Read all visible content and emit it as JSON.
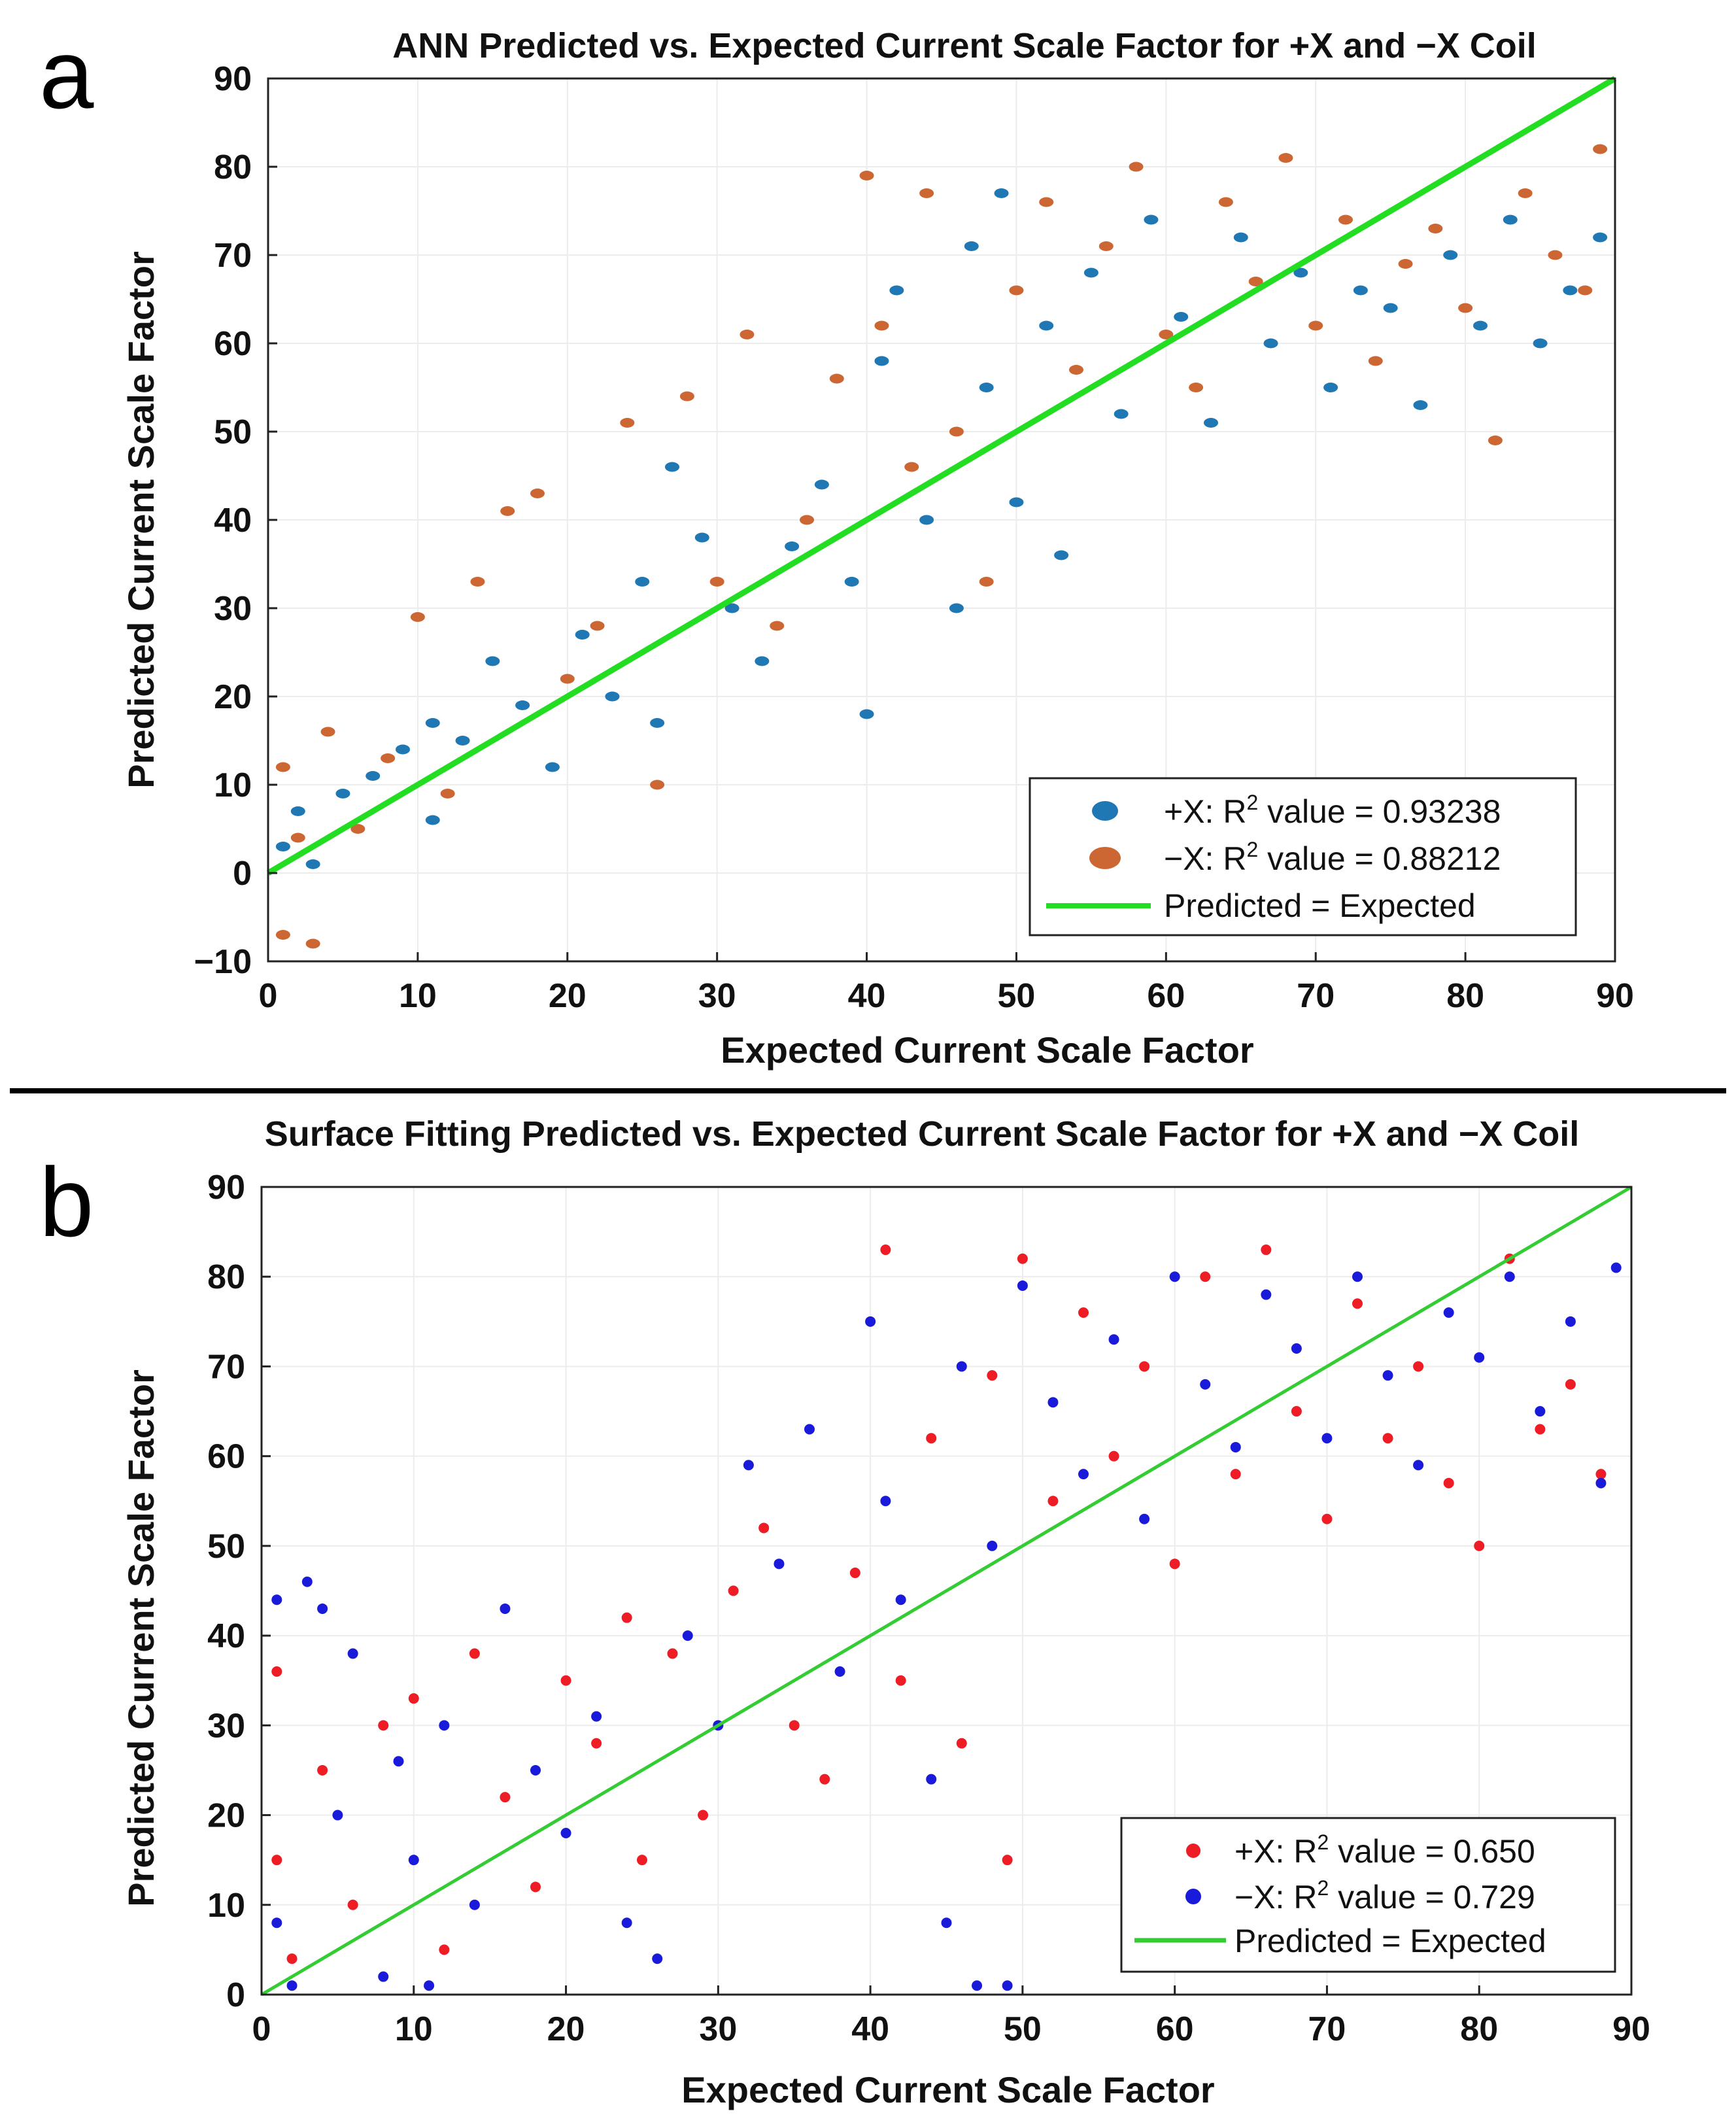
{
  "chart_data": [
    {
      "type": "scatter",
      "panel_letter": "a",
      "title": "ANN Predicted vs. Expected Current Scale Factor for +X and −X Coil",
      "xlabel": "Expected Current Scale Factor",
      "ylabel": "Predicted Current Scale Factor",
      "xlim": [
        0,
        90
      ],
      "ylim": [
        -10,
        90
      ],
      "xticks": [
        "0",
        "10",
        "20",
        "30",
        "40",
        "50",
        "60",
        "70",
        "80",
        "90"
      ],
      "yticks": [
        "−10",
        "0",
        "10",
        "20",
        "30",
        "40",
        "50",
        "60",
        "70",
        "80",
        "90"
      ],
      "legend_position": "bottom-right",
      "series": [
        {
          "name": "+X",
          "legend_label": "+X: R",
          "legend_sup": "2",
          "legend_value": " value  = 0.93238",
          "r_squared": 0.93238,
          "color": "#1f77b4",
          "marker": "ellipse",
          "points": [
            [
              1,
              3
            ],
            [
              2,
              7
            ],
            [
              3,
              1
            ],
            [
              5,
              9
            ],
            [
              7,
              11
            ],
            [
              9,
              14
            ],
            [
              11,
              17
            ],
            [
              11,
              6
            ],
            [
              13,
              15
            ],
            [
              15,
              24
            ],
            [
              17,
              19
            ],
            [
              19,
              12
            ],
            [
              21,
              27
            ],
            [
              23,
              20
            ],
            [
              25,
              33
            ],
            [
              26,
              17
            ],
            [
              27,
              46
            ],
            [
              29,
              38
            ],
            [
              31,
              30
            ],
            [
              33,
              24
            ],
            [
              35,
              37
            ],
            [
              37,
              44
            ],
            [
              39,
              33
            ],
            [
              40,
              18
            ],
            [
              41,
              58
            ],
            [
              42,
              66
            ],
            [
              44,
              40
            ],
            [
              46,
              30
            ],
            [
              47,
              71
            ],
            [
              48,
              55
            ],
            [
              49,
              77
            ],
            [
              50,
              42
            ],
            [
              52,
              62
            ],
            [
              53,
              36
            ],
            [
              55,
              68
            ],
            [
              57,
              52
            ],
            [
              59,
              74
            ],
            [
              61,
              63
            ],
            [
              63,
              51
            ],
            [
              65,
              72
            ],
            [
              67,
              60
            ],
            [
              69,
              68
            ],
            [
              71,
              55
            ],
            [
              73,
              66
            ],
            [
              75,
              64
            ],
            [
              77,
              53
            ],
            [
              79,
              70
            ],
            [
              81,
              62
            ],
            [
              83,
              74
            ],
            [
              85,
              60
            ],
            [
              87,
              66
            ],
            [
              89,
              72
            ]
          ]
        },
        {
          "name": "−X",
          "legend_label": "−X: R",
          "legend_sup": "2",
          "legend_value": " value  = 0.88212",
          "r_squared": 0.88212,
          "color": "#cc6633",
          "marker": "ellipse",
          "points": [
            [
              1,
              -7
            ],
            [
              1,
              12
            ],
            [
              2,
              4
            ],
            [
              3,
              -8
            ],
            [
              4,
              16
            ],
            [
              6,
              5
            ],
            [
              8,
              13
            ],
            [
              10,
              29
            ],
            [
              12,
              9
            ],
            [
              14,
              33
            ],
            [
              16,
              41
            ],
            [
              18,
              43
            ],
            [
              20,
              22
            ],
            [
              22,
              28
            ],
            [
              24,
              51
            ],
            [
              26,
              10
            ],
            [
              28,
              54
            ],
            [
              30,
              33
            ],
            [
              32,
              61
            ],
            [
              34,
              28
            ],
            [
              36,
              40
            ],
            [
              38,
              56
            ],
            [
              40,
              79
            ],
            [
              41,
              62
            ],
            [
              43,
              46
            ],
            [
              44,
              77
            ],
            [
              46,
              50
            ],
            [
              48,
              33
            ],
            [
              50,
              66
            ],
            [
              52,
              76
            ],
            [
              54,
              57
            ],
            [
              56,
              71
            ],
            [
              58,
              80
            ],
            [
              60,
              61
            ],
            [
              62,
              55
            ],
            [
              64,
              76
            ],
            [
              66,
              67
            ],
            [
              68,
              81
            ],
            [
              70,
              62
            ],
            [
              72,
              74
            ],
            [
              74,
              58
            ],
            [
              76,
              69
            ],
            [
              78,
              73
            ],
            [
              80,
              64
            ],
            [
              82,
              49
            ],
            [
              84,
              77
            ],
            [
              86,
              70
            ],
            [
              88,
              66
            ],
            [
              89,
              82
            ]
          ]
        },
        {
          "name": "Predicted = Expected",
          "legend_label": "Predicted  = Expected",
          "color": "#22dd22",
          "marker": "line",
          "x": [
            0,
            90
          ],
          "y": [
            0,
            90
          ]
        }
      ]
    },
    {
      "type": "scatter",
      "panel_letter": "b",
      "title": "Surface Fitting Predicted vs. Expected Current Scale Factor for +X and −X Coil",
      "xlabel": "Expected Current Scale Factor",
      "ylabel": "Predicted Current Scale Factor",
      "xlim": [
        0,
        90
      ],
      "ylim": [
        0,
        90
      ],
      "xticks": [
        "0",
        "10",
        "20",
        "30",
        "40",
        "50",
        "60",
        "70",
        "80",
        "90"
      ],
      "yticks": [
        "0",
        "10",
        "20",
        "30",
        "40",
        "50",
        "60",
        "70",
        "80",
        "90"
      ],
      "legend_position": "bottom-right",
      "series": [
        {
          "name": "+X",
          "legend_label": "+X: R",
          "legend_sup": "2",
          "legend_value": " value  = 0.650",
          "r_squared": 0.65,
          "color": "#ee1c24",
          "marker": "circle",
          "points": [
            [
              1,
              36
            ],
            [
              1,
              15
            ],
            [
              2,
              4
            ],
            [
              4,
              25
            ],
            [
              6,
              10
            ],
            [
              8,
              30
            ],
            [
              10,
              33
            ],
            [
              12,
              5
            ],
            [
              14,
              38
            ],
            [
              16,
              22
            ],
            [
              18,
              12
            ],
            [
              20,
              35
            ],
            [
              22,
              28
            ],
            [
              24,
              42
            ],
            [
              25,
              15
            ],
            [
              27,
              38
            ],
            [
              29,
              20
            ],
            [
              31,
              45
            ],
            [
              33,
              52
            ],
            [
              35,
              30
            ],
            [
              37,
              24
            ],
            [
              39,
              47
            ],
            [
              41,
              83
            ],
            [
              42,
              35
            ],
            [
              44,
              62
            ],
            [
              46,
              28
            ],
            [
              48,
              69
            ],
            [
              49,
              15
            ],
            [
              50,
              82
            ],
            [
              52,
              55
            ],
            [
              54,
              76
            ],
            [
              56,
              60
            ],
            [
              58,
              70
            ],
            [
              60,
              48
            ],
            [
              62,
              80
            ],
            [
              64,
              58
            ],
            [
              66,
              83
            ],
            [
              68,
              65
            ],
            [
              70,
              53
            ],
            [
              72,
              77
            ],
            [
              74,
              62
            ],
            [
              76,
              70
            ],
            [
              78,
              57
            ],
            [
              80,
              50
            ],
            [
              82,
              82
            ],
            [
              84,
              63
            ],
            [
              86,
              68
            ],
            [
              88,
              58
            ]
          ]
        },
        {
          "name": "−X",
          "legend_label": "−X: R",
          "legend_sup": "2",
          "legend_value": " value  = 0.729",
          "r_squared": 0.729,
          "color": "#1a1adb",
          "marker": "circle",
          "points": [
            [
              1,
              44
            ],
            [
              1,
              8
            ],
            [
              2,
              1
            ],
            [
              3,
              46
            ],
            [
              4,
              43
            ],
            [
              5,
              20
            ],
            [
              6,
              38
            ],
            [
              8,
              2
            ],
            [
              9,
              26
            ],
            [
              10,
              15
            ],
            [
              11,
              1
            ],
            [
              12,
              30
            ],
            [
              14,
              10
            ],
            [
              16,
              43
            ],
            [
              18,
              25
            ],
            [
              20,
              18
            ],
            [
              22,
              31
            ],
            [
              24,
              8
            ],
            [
              26,
              4
            ],
            [
              28,
              40
            ],
            [
              30,
              30
            ],
            [
              32,
              59
            ],
            [
              34,
              48
            ],
            [
              36,
              63
            ],
            [
              38,
              36
            ],
            [
              40,
              75
            ],
            [
              41,
              55
            ],
            [
              42,
              44
            ],
            [
              44,
              24
            ],
            [
              45,
              8
            ],
            [
              46,
              70
            ],
            [
              47,
              1
            ],
            [
              48,
              50
            ],
            [
              49,
              1
            ],
            [
              50,
              79
            ],
            [
              52,
              66
            ],
            [
              54,
              58
            ],
            [
              56,
              73
            ],
            [
              58,
              53
            ],
            [
              60,
              80
            ],
            [
              62,
              68
            ],
            [
              64,
              61
            ],
            [
              66,
              78
            ],
            [
              68,
              72
            ],
            [
              70,
              62
            ],
            [
              72,
              80
            ],
            [
              74,
              69
            ],
            [
              76,
              59
            ],
            [
              78,
              76
            ],
            [
              80,
              71
            ],
            [
              82,
              80
            ],
            [
              84,
              65
            ],
            [
              86,
              75
            ],
            [
              88,
              57
            ],
            [
              89,
              81
            ]
          ]
        },
        {
          "name": "Predicted = Expected",
          "legend_label": "Predicted  = Expected",
          "color": "#33cc33",
          "marker": "line",
          "x": [
            0,
            90
          ],
          "y": [
            0,
            90
          ]
        }
      ]
    }
  ]
}
